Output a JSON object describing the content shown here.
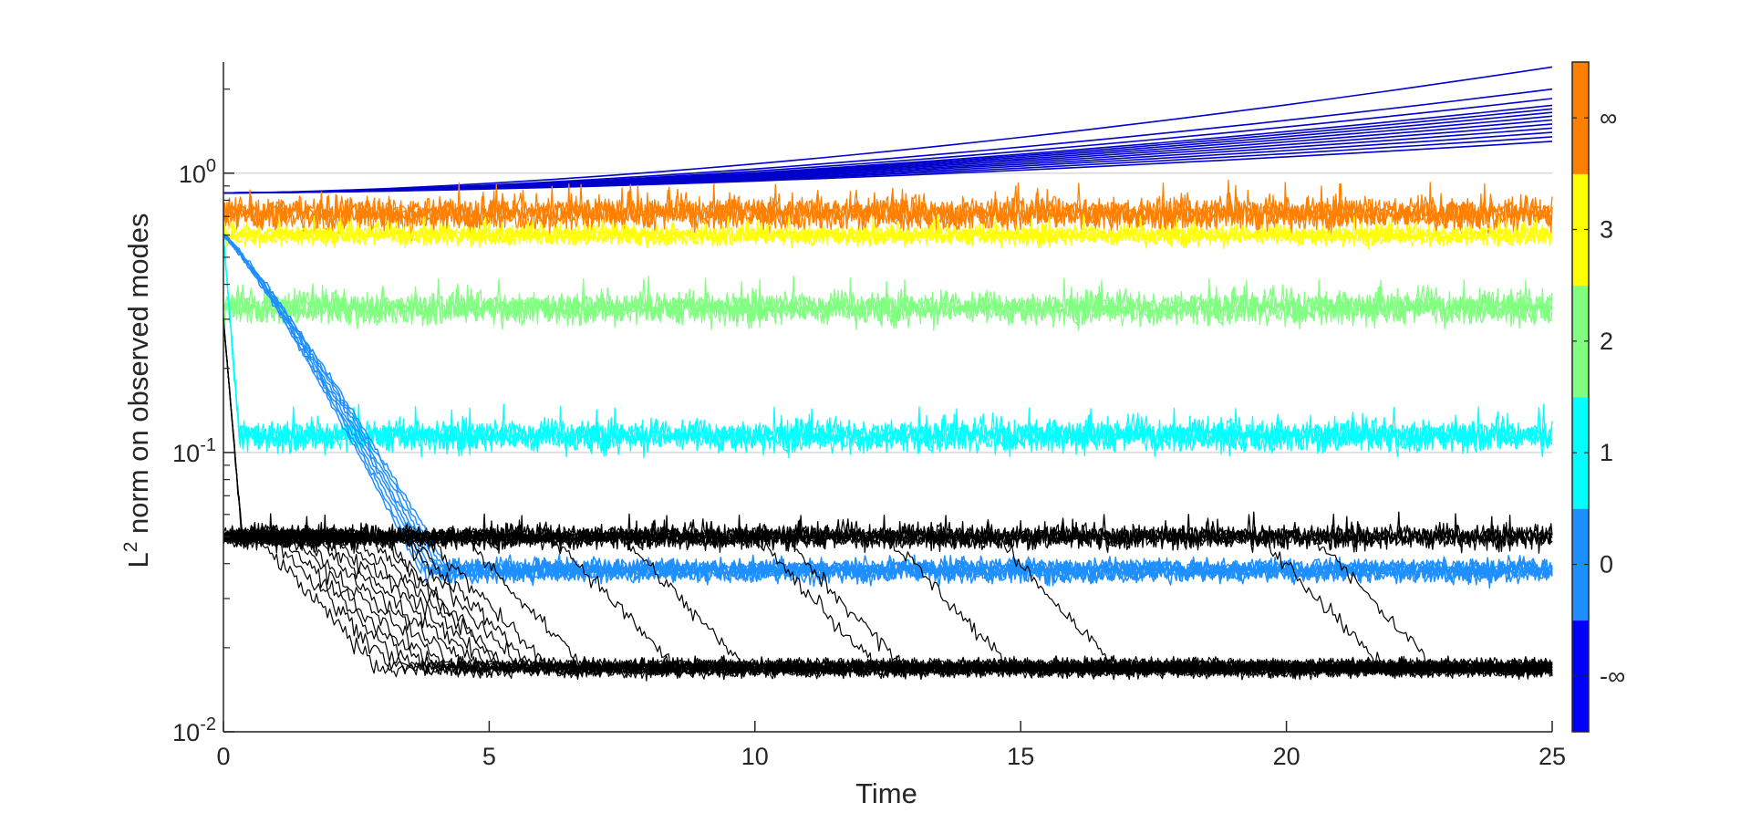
{
  "chart_data": {
    "type": "line",
    "title": "",
    "xlabel": "Time",
    "ylabel_main": "L",
    "ylabel_sup": "2",
    "ylabel_rest": " norm on observed modes",
    "xlim": [
      0,
      25
    ],
    "ylim": [
      0.01,
      2.5
    ],
    "yscale": "log",
    "grid": "y-major",
    "x_ticks": [
      0,
      5,
      10,
      15,
      20,
      25
    ],
    "y_ticks": [
      {
        "value": 0.01,
        "base": "10",
        "exp": "-2"
      },
      {
        "value": 0.1,
        "base": "10",
        "exp": "-1"
      },
      {
        "value": 1,
        "base": "10",
        "exp": "0"
      }
    ],
    "colorbar": {
      "placement": "right",
      "colors": [
        "#0000ff",
        "#1e8fff",
        "#00ffff",
        "#80ff80",
        "#ffff00",
        "#ff8000"
      ],
      "labels": [
        "-∞",
        "0",
        "1",
        "2",
        "3",
        "∞"
      ]
    },
    "series": [
      {
        "color": "#0000cc",
        "kind": "diverging",
        "start": 0.85,
        "ends": [
          2.4,
          2.0,
          1.85,
          1.75,
          1.7,
          1.65,
          1.6,
          1.55,
          1.5,
          1.45,
          1.4,
          1.35,
          1.3
        ]
      },
      {
        "color": "#ff8000",
        "kind": "noisy-band",
        "level": 0.72,
        "spread": 0.08
      },
      {
        "color": "#ffff00",
        "kind": "noisy-band",
        "level": 0.6,
        "spread": 0.04
      },
      {
        "color": "#80ff80",
        "kind": "noisy-band",
        "level": 0.33,
        "spread": 0.035
      },
      {
        "color": "#00ffff",
        "kind": "noisy-band",
        "start": 0.6,
        "decay_end": 0.3,
        "level": 0.115,
        "spread": 0.012
      },
      {
        "color": "#000000",
        "kind": "noisy-band",
        "start": 0.3,
        "decay_end": 0.35,
        "level": 0.05,
        "spread": 0.004
      },
      {
        "color": "#1e8fff",
        "kind": "decay-band",
        "start": 0.6,
        "decay_end": 4.0,
        "level": 0.038,
        "spread": 0.003
      },
      {
        "color": "#000000",
        "kind": "delayed-decay",
        "from": 0.05,
        "level": 0.017,
        "release_times": [
          0.6,
          0.9,
          1.1,
          1.3,
          1.5,
          1.7,
          1.9,
          2.1,
          2.3,
          2.5,
          2.7,
          2.9,
          3.0,
          3.3,
          3.5,
          3.8,
          4.5,
          6.2,
          7.5,
          10.0,
          10.5,
          12.5,
          14.5,
          19.5,
          20.5
        ]
      }
    ]
  }
}
